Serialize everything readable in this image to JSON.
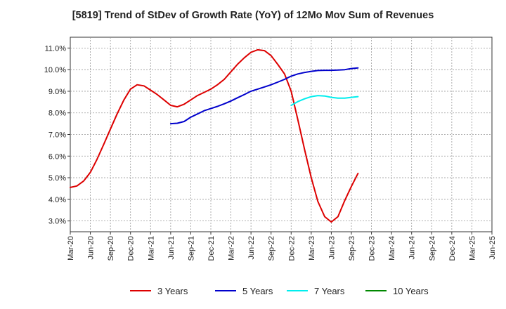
{
  "chart_data": {
    "type": "line",
    "title": "[5819]  Trend of StDev of Growth Rate (YoY) of 12Mo Mov Sum of Revenues",
    "xlabel": "",
    "ylabel": "",
    "x": [
      "Mar-20",
      "Jun-20",
      "Sep-20",
      "Dec-20",
      "Mar-21",
      "Jun-21",
      "Sep-21",
      "Dec-21",
      "Mar-22",
      "Jun-22",
      "Sep-22",
      "Dec-22",
      "Mar-23",
      "Jun-23",
      "Sep-23",
      "Dec-23",
      "Mar-24",
      "Jun-24",
      "Sep-24",
      "Dec-24",
      "Mar-25",
      "Jun-25"
    ],
    "ylim": [
      2.5,
      11.5
    ],
    "yticks": [
      3.0,
      4.0,
      5.0,
      6.0,
      7.0,
      8.0,
      9.0,
      10.0,
      11.0
    ],
    "ytick_labels": [
      "3.0%",
      "4.0%",
      "5.0%",
      "6.0%",
      "7.0%",
      "8.0%",
      "9.0%",
      "10.0%",
      "11.0%"
    ],
    "grid": true,
    "legend_position": "bottom",
    "series": [
      {
        "name": "3 Years",
        "color": "#dd0000",
        "points": [
          [
            0,
            4.55
          ],
          [
            0.33,
            4.62
          ],
          [
            0.67,
            4.85
          ],
          [
            1,
            5.25
          ],
          [
            1.33,
            5.85
          ],
          [
            1.67,
            6.55
          ],
          [
            2,
            7.25
          ],
          [
            2.33,
            7.95
          ],
          [
            2.67,
            8.6
          ],
          [
            3,
            9.1
          ],
          [
            3.33,
            9.3
          ],
          [
            3.67,
            9.25
          ],
          [
            4,
            9.05
          ],
          [
            4.33,
            8.85
          ],
          [
            4.67,
            8.6
          ],
          [
            5,
            8.35
          ],
          [
            5.33,
            8.28
          ],
          [
            5.67,
            8.4
          ],
          [
            6,
            8.6
          ],
          [
            6.33,
            8.8
          ],
          [
            6.67,
            8.95
          ],
          [
            7,
            9.1
          ],
          [
            7.33,
            9.3
          ],
          [
            7.67,
            9.55
          ],
          [
            8,
            9.9
          ],
          [
            8.33,
            10.25
          ],
          [
            8.67,
            10.55
          ],
          [
            9,
            10.8
          ],
          [
            9.33,
            10.92
          ],
          [
            9.67,
            10.88
          ],
          [
            10,
            10.65
          ],
          [
            10.33,
            10.25
          ],
          [
            10.67,
            9.8
          ],
          [
            11,
            9.0
          ],
          [
            11.33,
            7.7
          ],
          [
            11.67,
            6.3
          ],
          [
            12,
            5.0
          ],
          [
            12.33,
            3.9
          ],
          [
            12.67,
            3.2
          ],
          [
            13,
            2.95
          ],
          [
            13.33,
            3.2
          ],
          [
            13.67,
            3.95
          ],
          [
            14,
            4.6
          ],
          [
            14.33,
            5.2
          ]
        ]
      },
      {
        "name": "5 Years",
        "color": "#0000cc",
        "points": [
          [
            5,
            7.5
          ],
          [
            5.33,
            7.52
          ],
          [
            5.67,
            7.6
          ],
          [
            6,
            7.8
          ],
          [
            6.33,
            7.95
          ],
          [
            6.67,
            8.1
          ],
          [
            7,
            8.2
          ],
          [
            7.33,
            8.3
          ],
          [
            7.67,
            8.42
          ],
          [
            8,
            8.55
          ],
          [
            8.33,
            8.7
          ],
          [
            8.67,
            8.85
          ],
          [
            9,
            9.0
          ],
          [
            9.33,
            9.1
          ],
          [
            9.67,
            9.2
          ],
          [
            10,
            9.3
          ],
          [
            10.33,
            9.42
          ],
          [
            10.67,
            9.55
          ],
          [
            11,
            9.7
          ],
          [
            11.33,
            9.8
          ],
          [
            11.67,
            9.87
          ],
          [
            12,
            9.92
          ],
          [
            12.33,
            9.96
          ],
          [
            12.67,
            9.97
          ],
          [
            13,
            9.97
          ],
          [
            13.33,
            9.98
          ],
          [
            13.67,
            10.0
          ],
          [
            14,
            10.05
          ],
          [
            14.33,
            10.08
          ]
        ]
      },
      {
        "name": "7 Years",
        "color": "#00eeee",
        "points": [
          [
            11,
            8.35
          ],
          [
            11.33,
            8.52
          ],
          [
            11.67,
            8.65
          ],
          [
            12,
            8.75
          ],
          [
            12.33,
            8.8
          ],
          [
            12.67,
            8.78
          ],
          [
            13,
            8.72
          ],
          [
            13.33,
            8.68
          ],
          [
            13.67,
            8.68
          ],
          [
            14,
            8.72
          ],
          [
            14.33,
            8.75
          ]
        ]
      },
      {
        "name": "10 Years",
        "color": "#008800",
        "points": []
      }
    ]
  }
}
